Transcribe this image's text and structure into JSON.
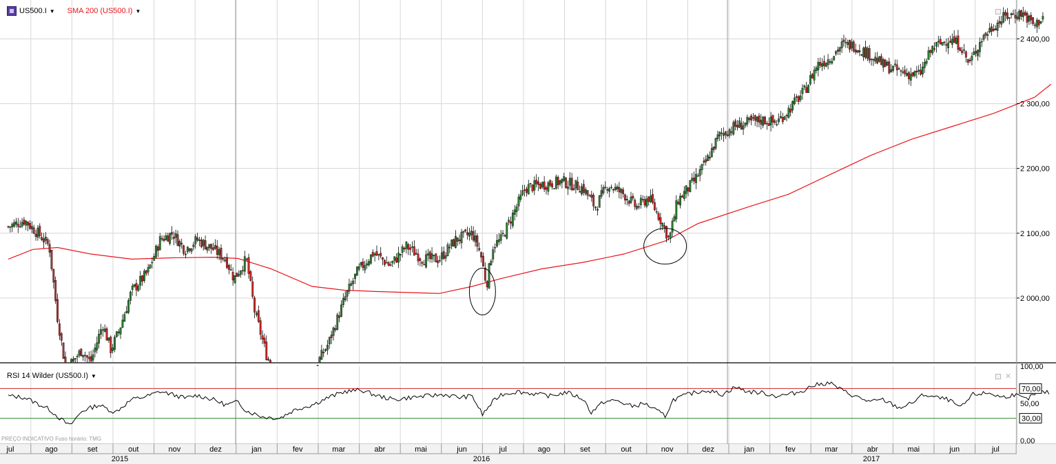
{
  "header": {
    "symbol": "US500.I",
    "overlay_label": "SMA 200 (US500.I)",
    "rsi_label": "RSI 14 Wilder (US500.I)",
    "footer_note": "PREÇO INDICATIVO   Fuso horário: TMG"
  },
  "colors": {
    "sma": "#e8141c",
    "rsi_line": "#000000",
    "rsi_upper": "#d42020",
    "rsi_lower": "#2e8b2e",
    "candle_up": "#2e7d32",
    "candle_down": "#c62828",
    "grid": "#d6d6d6",
    "separator": "#9a9a9a"
  },
  "icons": [
    "symbol-icon",
    "dropdown-caret-icon",
    "maximize-icon",
    "close-icon"
  ],
  "chart_data": [
    {
      "type": "candlestick",
      "title": "US500.I",
      "price_axis": {
        "ticks": [
          2000,
          2100,
          2200,
          2300,
          2400
        ],
        "tick_labels": [
          "2 000,00",
          "2 100,00",
          "2 200,00",
          "2 300,00",
          "2 400,00"
        ],
        "ylim": [
          1900,
          2460
        ]
      },
      "months": [
        "jul",
        "ago",
        "set",
        "out",
        "nov",
        "dez",
        "jan",
        "fev",
        "mar",
        "abr",
        "mai",
        "jun",
        "jul",
        "ago",
        "set",
        "out",
        "nov",
        "dez",
        "jan",
        "fev",
        "mar",
        "abr",
        "mai",
        "jun",
        "jul"
      ],
      "years": [
        "2015",
        "2016",
        "2017"
      ],
      "close_path": [
        [
          0,
          2110
        ],
        [
          0.4,
          2120
        ],
        [
          0.8,
          2095
        ],
        [
          1.0,
          2080
        ],
        [
          1.2,
          1970
        ],
        [
          1.4,
          1890
        ],
        [
          1.8,
          1920
        ],
        [
          2.0,
          1900
        ],
        [
          2.3,
          1960
        ],
        [
          2.5,
          1920
        ],
        [
          2.7,
          1950
        ],
        [
          3.0,
          2010
        ],
        [
          3.4,
          2040
        ],
        [
          3.7,
          2090
        ],
        [
          4.0,
          2100
        ],
        [
          4.3,
          2075
        ],
        [
          4.6,
          2090
        ],
        [
          5.0,
          2075
        ],
        [
          5.3,
          2060
        ],
        [
          5.5,
          2030
        ],
        [
          5.8,
          2060
        ],
        [
          6.0,
          1980
        ],
        [
          6.3,
          1910
        ],
        [
          6.6,
          1880
        ],
        [
          7.0,
          1870
        ],
        [
          7.4,
          1885
        ],
        [
          7.8,
          1930
        ],
        [
          8.2,
          2000
        ],
        [
          8.5,
          2040
        ],
        [
          8.9,
          2070
        ],
        [
          9.3,
          2050
        ],
        [
          9.7,
          2080
        ],
        [
          10.1,
          2060
        ],
        [
          10.5,
          2060
        ],
        [
          10.9,
          2090
        ],
        [
          11.3,
          2100
        ],
        [
          11.5,
          2070
        ],
        [
          11.65,
          2020
        ],
        [
          11.8,
          2080
        ],
        [
          12.0,
          2090
        ],
        [
          12.3,
          2130
        ],
        [
          12.6,
          2170
        ],
        [
          13.0,
          2175
        ],
        [
          13.5,
          2180
        ],
        [
          14.0,
          2170
        ],
        [
          14.3,
          2140
        ],
        [
          14.6,
          2175
        ],
        [
          15.0,
          2160
        ],
        [
          15.3,
          2140
        ],
        [
          15.6,
          2155
        ],
        [
          15.9,
          2120
        ],
        [
          16.1,
          2090
        ],
        [
          16.3,
          2150
        ],
        [
          16.7,
          2180
        ],
        [
          17.0,
          2210
        ],
        [
          17.3,
          2250
        ],
        [
          17.7,
          2265
        ],
        [
          18.0,
          2270
        ],
        [
          18.4,
          2275
        ],
        [
          18.7,
          2270
        ],
        [
          19.0,
          2290
        ],
        [
          19.4,
          2320
        ],
        [
          19.7,
          2360
        ],
        [
          20.0,
          2370
        ],
        [
          20.3,
          2390
        ],
        [
          20.6,
          2390
        ],
        [
          21.0,
          2375
        ],
        [
          21.3,
          2360
        ],
        [
          21.7,
          2350
        ],
        [
          22.0,
          2345
        ],
        [
          22.2,
          2345
        ],
        [
          22.5,
          2385
        ],
        [
          22.9,
          2400
        ],
        [
          23.2,
          2390
        ],
        [
          23.4,
          2360
        ],
        [
          23.7,
          2400
        ],
        [
          24.0,
          2420
        ],
        [
          24.3,
          2435
        ],
        [
          24.7,
          2440
        ],
        [
          25.0,
          2420
        ],
        [
          25.2,
          2435
        ]
      ],
      "sma_path": [
        [
          0,
          2060
        ],
        [
          0.6,
          2075
        ],
        [
          1.2,
          2078
        ],
        [
          2.0,
          2068
        ],
        [
          3.0,
          2060
        ],
        [
          4.0,
          2062
        ],
        [
          5.0,
          2063
        ],
        [
          5.6,
          2061
        ],
        [
          6.4,
          2045
        ],
        [
          7.4,
          2018
        ],
        [
          8.2,
          2012
        ],
        [
          9.0,
          2010
        ],
        [
          10.0,
          2008
        ],
        [
          10.5,
          2007
        ],
        [
          11.3,
          2018
        ],
        [
          12.0,
          2030
        ],
        [
          13.0,
          2045
        ],
        [
          14.0,
          2055
        ],
        [
          15.0,
          2068
        ],
        [
          16.0,
          2088
        ],
        [
          16.8,
          2115
        ],
        [
          18.0,
          2140
        ],
        [
          19.0,
          2160
        ],
        [
          20.0,
          2190
        ],
        [
          21.0,
          2220
        ],
        [
          22.0,
          2245
        ],
        [
          23.0,
          2265
        ],
        [
          24.0,
          2285
        ],
        [
          25.0,
          2310
        ],
        [
          25.4,
          2330
        ]
      ],
      "annotations": [
        {
          "shape": "ellipse",
          "month_pos": 11.55,
          "price": 2010
        },
        {
          "shape": "ellipse",
          "month_pos": 16.0,
          "price": 2080
        }
      ]
    },
    {
      "type": "line",
      "title": "RSI 14 Wilder (US500.I)",
      "ylim": [
        0,
        100
      ],
      "ticks": [
        0,
        50,
        100
      ],
      "tick_labels": [
        "0,00",
        "50,00",
        "100,00"
      ],
      "levels": [
        {
          "value": 70,
          "label": "70,00"
        },
        {
          "value": 30,
          "label": "30,00"
        }
      ],
      "rsi_path": [
        [
          0,
          60
        ],
        [
          0.4,
          58
        ],
        [
          0.7,
          50
        ],
        [
          1.0,
          42
        ],
        [
          1.3,
          28
        ],
        [
          1.5,
          20
        ],
        [
          1.8,
          40
        ],
        [
          2.2,
          48
        ],
        [
          2.6,
          38
        ],
        [
          3.0,
          55
        ],
        [
          3.4,
          60
        ],
        [
          3.7,
          66
        ],
        [
          4.0,
          62
        ],
        [
          4.3,
          57
        ],
        [
          4.6,
          61
        ],
        [
          5.0,
          55
        ],
        [
          5.3,
          48
        ],
        [
          5.6,
          52
        ],
        [
          5.8,
          40
        ],
        [
          6.2,
          32
        ],
        [
          6.6,
          30
        ],
        [
          7.0,
          42
        ],
        [
          7.4,
          48
        ],
        [
          7.8,
          58
        ],
        [
          8.2,
          66
        ],
        [
          8.6,
          68
        ],
        [
          9.0,
          60
        ],
        [
          9.4,
          55
        ],
        [
          9.8,
          58
        ],
        [
          10.2,
          60
        ],
        [
          10.6,
          62
        ],
        [
          11.0,
          58
        ],
        [
          11.3,
          60
        ],
        [
          11.55,
          35
        ],
        [
          11.8,
          52
        ],
        [
          12.0,
          62
        ],
        [
          12.4,
          66
        ],
        [
          12.8,
          63
        ],
        [
          13.2,
          60
        ],
        [
          13.6,
          65
        ],
        [
          14.0,
          56
        ],
        [
          14.2,
          38
        ],
        [
          14.5,
          52
        ],
        [
          14.8,
          54
        ],
        [
          15.2,
          46
        ],
        [
          15.5,
          50
        ],
        [
          15.8,
          40
        ],
        [
          16.0,
          33
        ],
        [
          16.2,
          55
        ],
        [
          16.6,
          63
        ],
        [
          17.0,
          68
        ],
        [
          17.4,
          62
        ],
        [
          17.7,
          72
        ],
        [
          18.0,
          66
        ],
        [
          18.4,
          64
        ],
        [
          18.7,
          60
        ],
        [
          19.0,
          62
        ],
        [
          19.3,
          66
        ],
        [
          19.6,
          74
        ],
        [
          20.0,
          78
        ],
        [
          20.3,
          68
        ],
        [
          20.6,
          60
        ],
        [
          21.0,
          52
        ],
        [
          21.3,
          55
        ],
        [
          21.7,
          44
        ],
        [
          22.0,
          50
        ],
        [
          22.3,
          62
        ],
        [
          22.6,
          58
        ],
        [
          22.9,
          55
        ],
        [
          23.2,
          44
        ],
        [
          23.5,
          62
        ],
        [
          23.9,
          64
        ],
        [
          24.2,
          58
        ],
        [
          24.5,
          62
        ],
        [
          24.8,
          55
        ],
        [
          25.1,
          66
        ],
        [
          25.4,
          64
        ]
      ]
    }
  ]
}
